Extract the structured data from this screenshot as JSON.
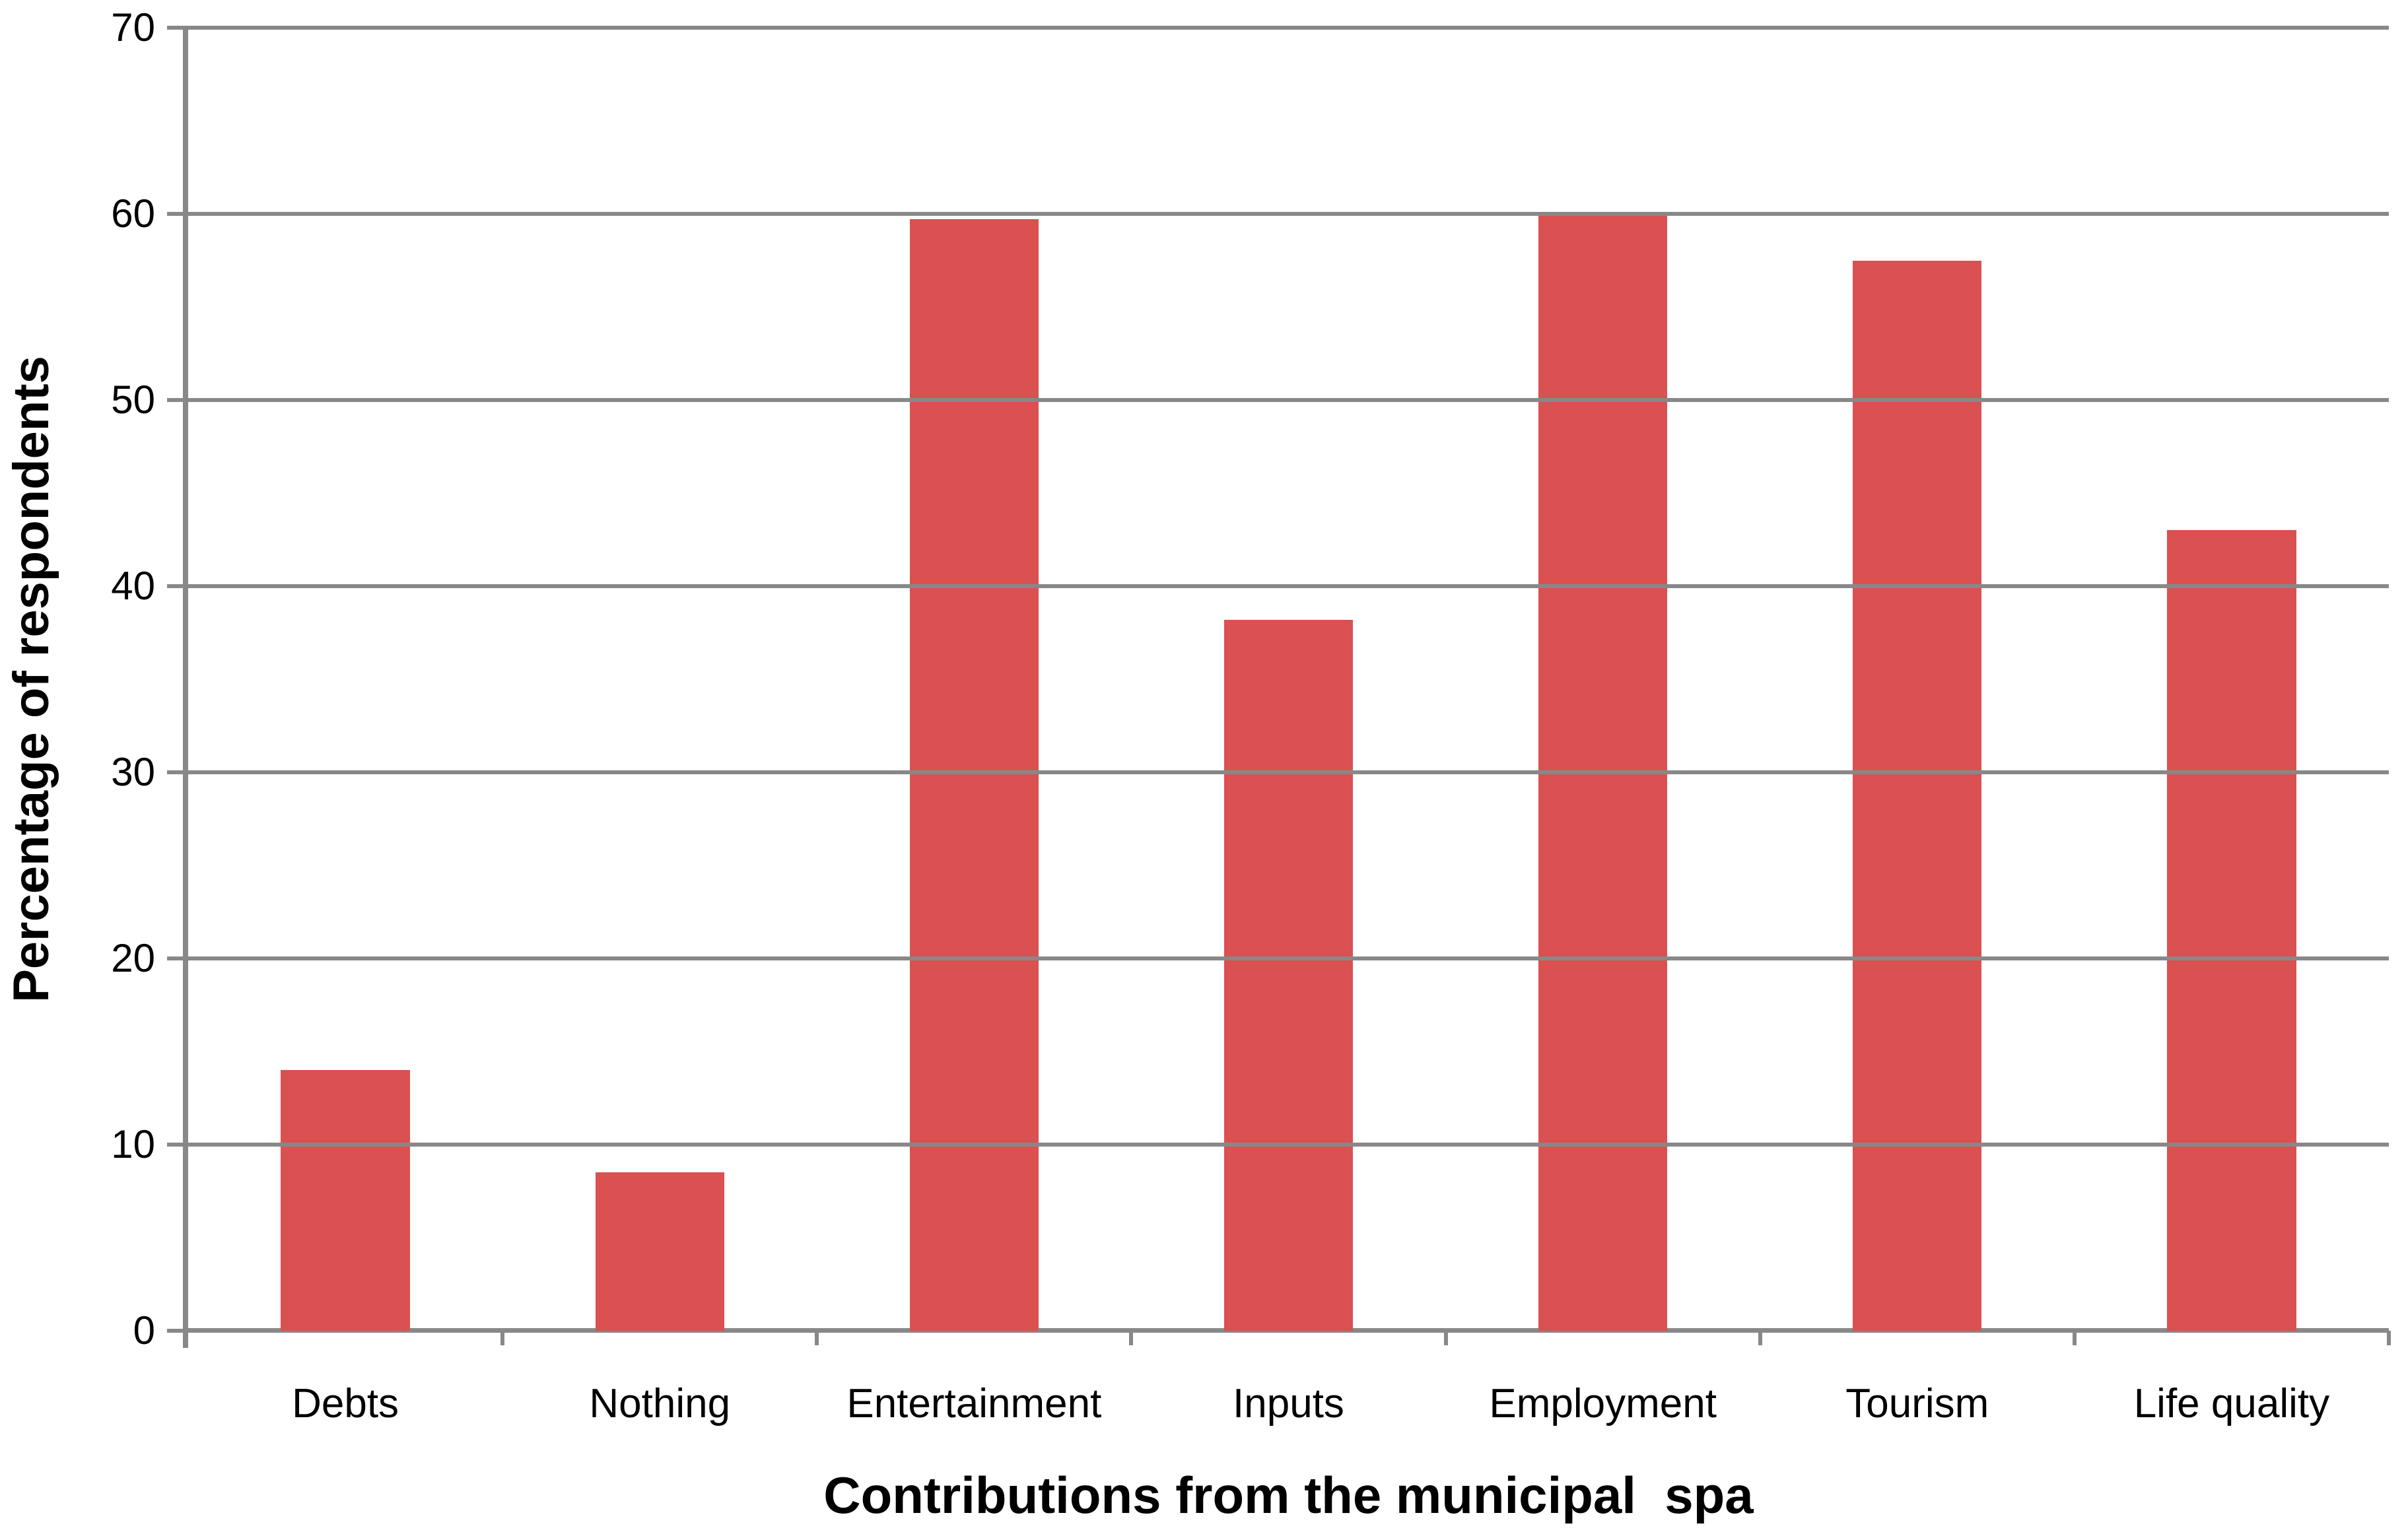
{
  "chart_data": {
    "type": "bar",
    "categories": [
      "Debts",
      "Nothing",
      "Entertainment",
      "Inputs",
      "Employment",
      "Tourism",
      "Life quality"
    ],
    "values": [
      14,
      8.5,
      59.7,
      38.2,
      60,
      57.5,
      43
    ],
    "title": "",
    "xlabel": "Contributions from the municipal  spa",
    "ylabel": "Percentage of respondents",
    "ylim": [
      0,
      70
    ],
    "yticks": [
      0,
      10,
      20,
      30,
      40,
      50,
      60,
      70
    ],
    "grid": "horizontal",
    "legend": "none",
    "bar_color": "#DB5050",
    "grid_color": "#888888",
    "axis_color": "#888888",
    "text_color": "#000000",
    "background": "#FFFFFF"
  }
}
